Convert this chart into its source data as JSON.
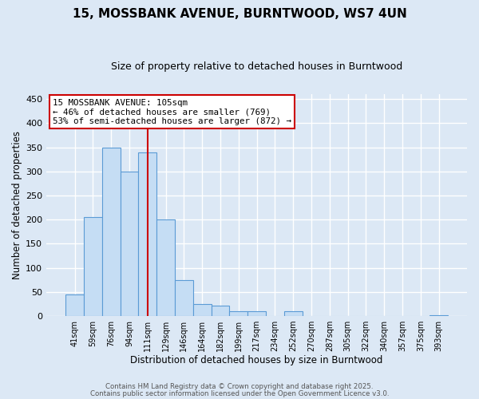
{
  "title": "15, MOSSBANK AVENUE, BURNTWOOD, WS7 4UN",
  "subtitle": "Size of property relative to detached houses in Burntwood",
  "xlabel": "Distribution of detached houses by size in Burntwood",
  "ylabel": "Number of detached properties",
  "bar_labels": [
    "41sqm",
    "59sqm",
    "76sqm",
    "94sqm",
    "111sqm",
    "129sqm",
    "146sqm",
    "164sqm",
    "182sqm",
    "199sqm",
    "217sqm",
    "234sqm",
    "252sqm",
    "270sqm",
    "287sqm",
    "305sqm",
    "322sqm",
    "340sqm",
    "357sqm",
    "375sqm",
    "393sqm"
  ],
  "bar_values": [
    45,
    205,
    350,
    300,
    340,
    200,
    75,
    25,
    22,
    10,
    10,
    0,
    10,
    0,
    0,
    0,
    0,
    0,
    0,
    0,
    2
  ],
  "bar_color": "#c5ddf4",
  "bar_edge_color": "#5b9bd5",
  "vline_x_idx": 4,
  "vline_color": "#cc0000",
  "ylim": [
    0,
    460
  ],
  "yticks": [
    0,
    50,
    100,
    150,
    200,
    250,
    300,
    350,
    400,
    450
  ],
  "annotation_title": "15 MOSSBANK AVENUE: 105sqm",
  "annotation_line1": "← 46% of detached houses are smaller (769)",
  "annotation_line2": "53% of semi-detached houses are larger (872) →",
  "annotation_box_color": "#ffffff",
  "annotation_box_edge_color": "#cc0000",
  "footer1": "Contains HM Land Registry data © Crown copyright and database right 2025.",
  "footer2": "Contains public sector information licensed under the Open Government Licence v3.0.",
  "background_color": "#dce8f5",
  "plot_bg_color": "#dce8f5",
  "grid_color": "#ffffff"
}
